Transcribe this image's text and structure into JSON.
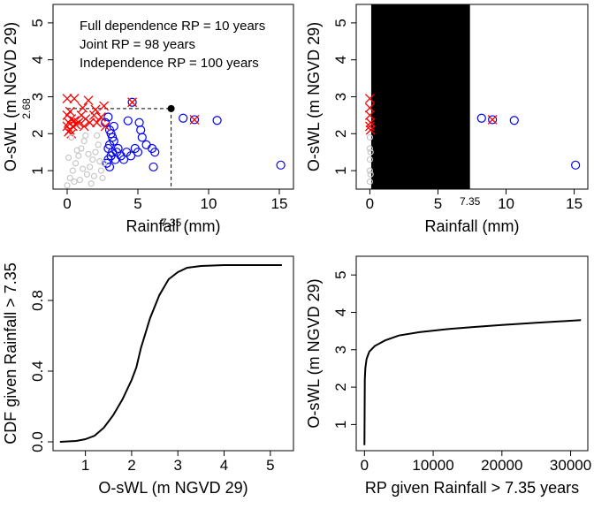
{
  "chart_data": [
    {
      "id": "p1",
      "type": "scatter",
      "xlabel": "Rainfall (mm)",
      "ylabel": "O-sWL (m NGVD 29)",
      "xlim": [
        -1,
        16
      ],
      "ylim": [
        0.5,
        5.5
      ],
      "xticks": [
        "0",
        "5",
        "10",
        "15"
      ],
      "yticks": [
        "1",
        "2",
        "3",
        "4",
        "5"
      ],
      "annotations": [
        "Full dependence RP = 10 years",
        "Joint RP = 98 years",
        "Independence RP = 100 years"
      ],
      "threshold_x_label": "7.35",
      "threshold_y_label": "2.68",
      "threshold_point": {
        "x": 7.35,
        "y": 2.68
      },
      "series": [
        {
          "name": "blue-circles",
          "marker": "circle",
          "color": "#0000ff",
          "points": [
            [
              2.8,
              1.2
            ],
            [
              2.9,
              1.3
            ],
            [
              3.0,
              1.1
            ],
            [
              3.1,
              1.4
            ],
            [
              3.2,
              1.5
            ],
            [
              2.9,
              1.6
            ],
            [
              3.0,
              1.7
            ],
            [
              3.3,
              1.8
            ],
            [
              3.2,
              1.9
            ],
            [
              3.1,
              2.0
            ],
            [
              3.4,
              1.3
            ],
            [
              3.5,
              1.5
            ],
            [
              3.6,
              1.6
            ],
            [
              3.0,
              2.1
            ],
            [
              3.3,
              2.2
            ],
            [
              2.7,
              2.3
            ],
            [
              3.8,
              1.4
            ],
            [
              4.0,
              1.3
            ],
            [
              4.2,
              1.5
            ],
            [
              4.5,
              1.4
            ],
            [
              4.8,
              1.6
            ],
            [
              5.0,
              1.5
            ],
            [
              5.1,
              2.3
            ],
            [
              5.2,
              2.1
            ],
            [
              5.3,
              1.9
            ],
            [
              5.6,
              1.7
            ],
            [
              6.0,
              1.6
            ],
            [
              6.1,
              1.1
            ],
            [
              6.2,
              1.5
            ],
            [
              2.9,
              2.45
            ],
            [
              4.3,
              2.35
            ],
            [
              4.6,
              2.85
            ],
            [
              8.2,
              2.42
            ],
            [
              9.0,
              2.38
            ],
            [
              10.6,
              2.36
            ],
            [
              15.1,
              1.15
            ]
          ]
        },
        {
          "name": "red-crosses",
          "marker": "x",
          "color": "#ff0000",
          "points": [
            [
              0.0,
              2.2
            ],
            [
              0.1,
              2.3
            ],
            [
              0.2,
              2.1
            ],
            [
              0.3,
              2.4
            ],
            [
              0.0,
              2.5
            ],
            [
              0.4,
              2.2
            ],
            [
              0.5,
              2.35
            ],
            [
              0.6,
              2.25
            ],
            [
              0.2,
              2.6
            ],
            [
              0.8,
              2.3
            ],
            [
              1.0,
              2.5
            ],
            [
              1.2,
              2.2
            ],
            [
              1.3,
              2.4
            ],
            [
              1.6,
              2.3
            ],
            [
              1.9,
              2.5
            ],
            [
              2.1,
              2.3
            ],
            [
              2.4,
              2.45
            ],
            [
              2.7,
              2.2
            ],
            [
              0.0,
              2.95
            ],
            [
              0.5,
              2.95
            ],
            [
              1.1,
              2.7
            ],
            [
              1.5,
              2.9
            ],
            [
              2.0,
              2.65
            ],
            [
              2.6,
              2.75
            ],
            [
              0.1,
              2.05
            ],
            [
              0.3,
              2.0
            ],
            [
              4.6,
              2.85
            ],
            [
              9.0,
              2.38
            ]
          ]
        },
        {
          "name": "gray-points",
          "marker": "circle",
          "color": "#c8c8c8",
          "points": [
            [
              0.0,
              0.6
            ],
            [
              0.2,
              0.8
            ],
            [
              0.4,
              1.0
            ],
            [
              0.6,
              1.2
            ],
            [
              0.8,
              1.4
            ],
            [
              1.0,
              1.6
            ],
            [
              1.2,
              1.8
            ],
            [
              1.4,
              0.9
            ],
            [
              1.6,
              1.1
            ],
            [
              1.8,
              1.3
            ],
            [
              2.0,
              1.5
            ],
            [
              2.2,
              1.7
            ],
            [
              2.4,
              1.0
            ],
            [
              2.6,
              1.2
            ],
            [
              0.3,
              1.9
            ],
            [
              0.5,
              0.7
            ],
            [
              0.9,
              0.75
            ],
            [
              1.3,
              1.95
            ],
            [
              1.7,
              0.65
            ],
            [
              2.1,
              1.95
            ],
            [
              2.5,
              0.8
            ],
            [
              0.1,
              1.35
            ],
            [
              0.7,
              1.55
            ],
            [
              1.1,
              1.05
            ],
            [
              1.5,
              1.45
            ],
            [
              1.9,
              0.85
            ],
            [
              2.3,
              1.25
            ]
          ]
        }
      ]
    },
    {
      "id": "p2",
      "type": "scatter",
      "xlabel": "Rainfall (mm)",
      "ylabel": "O-sWL (m NGVD 29)",
      "xlim": [
        -1,
        16
      ],
      "ylim": [
        0.5,
        5.5
      ],
      "xticks": [
        "0",
        "5",
        "10",
        "15"
      ],
      "yticks": [
        "1",
        "2",
        "3",
        "4",
        "5"
      ],
      "threshold_x_label": "7.35",
      "shaded_region": {
        "x_from": 0.1,
        "x_to": 7.35,
        "color": "#000000"
      },
      "series": [
        {
          "name": "blue-circles",
          "marker": "circle",
          "color": "#0000ff",
          "points": [
            [
              8.2,
              2.42
            ],
            [
              9.0,
              2.38
            ],
            [
              10.6,
              2.36
            ],
            [
              15.1,
              1.15
            ]
          ]
        },
        {
          "name": "red-crosses",
          "marker": "x",
          "color": "#ff0000",
          "points": [
            [
              0.0,
              2.2
            ],
            [
              0.05,
              2.3
            ],
            [
              0.0,
              2.5
            ],
            [
              0.05,
              2.1
            ],
            [
              0.0,
              2.95
            ],
            [
              0.0,
              2.7
            ],
            [
              9.0,
              2.38
            ]
          ]
        },
        {
          "name": "gray-points",
          "marker": "circle",
          "color": "#c8c8c8",
          "points": [
            [
              0.0,
              0.7
            ],
            [
              0.0,
              1.0
            ],
            [
              0.0,
              1.3
            ],
            [
              0.0,
              1.6
            ],
            [
              0.0,
              1.9
            ],
            [
              0.05,
              0.9
            ],
            [
              0.05,
              1.5
            ]
          ]
        }
      ]
    },
    {
      "id": "p3",
      "type": "line",
      "xlabel": "O-sWL (m NGVD 29)",
      "ylabel": "CDF given Rainfall > 7.35",
      "xlim": [
        0.3,
        5.5
      ],
      "ylim": [
        -0.05,
        1.05
      ],
      "xticks": [
        "1",
        "2",
        "3",
        "4",
        "5"
      ],
      "yticks": [
        "0.0",
        "0.4",
        "0.8"
      ],
      "series": [
        {
          "name": "cdf",
          "color": "#000000",
          "points": [
            [
              0.45,
              0.0
            ],
            [
              0.8,
              0.005
            ],
            [
              1.0,
              0.015
            ],
            [
              1.2,
              0.035
            ],
            [
              1.4,
              0.08
            ],
            [
              1.6,
              0.15
            ],
            [
              1.8,
              0.24
            ],
            [
              2.0,
              0.35
            ],
            [
              2.1,
              0.42
            ],
            [
              2.2,
              0.53
            ],
            [
              2.4,
              0.7
            ],
            [
              2.6,
              0.83
            ],
            [
              2.8,
              0.92
            ],
            [
              3.0,
              0.96
            ],
            [
              3.2,
              0.985
            ],
            [
              3.5,
              0.995
            ],
            [
              4.0,
              1.0
            ],
            [
              5.25,
              1.0
            ]
          ]
        }
      ]
    },
    {
      "id": "p4",
      "type": "line",
      "xlabel": "RP given Rainfall > 7.35 years",
      "ylabel": "O-sWL (m NGVD 29)",
      "xlim": [
        -1200,
        32500
      ],
      "ylim": [
        0.3,
        5.5
      ],
      "xticks": [
        "0",
        "10000",
        "20000",
        "30000"
      ],
      "yticks": [
        "1",
        "2",
        "3",
        "4",
        "5"
      ],
      "series": [
        {
          "name": "return-period-curve",
          "color": "#000000",
          "points": [
            [
              0,
              0.45
            ],
            [
              20,
              1.3
            ],
            [
              50,
              2.2
            ],
            [
              120,
              2.5
            ],
            [
              300,
              2.75
            ],
            [
              700,
              2.95
            ],
            [
              1500,
              3.1
            ],
            [
              3000,
              3.25
            ],
            [
              5000,
              3.38
            ],
            [
              8000,
              3.47
            ],
            [
              12000,
              3.55
            ],
            [
              16000,
              3.61
            ],
            [
              20000,
              3.66
            ],
            [
              25000,
              3.72
            ],
            [
              31500,
              3.79
            ]
          ]
        }
      ]
    }
  ]
}
